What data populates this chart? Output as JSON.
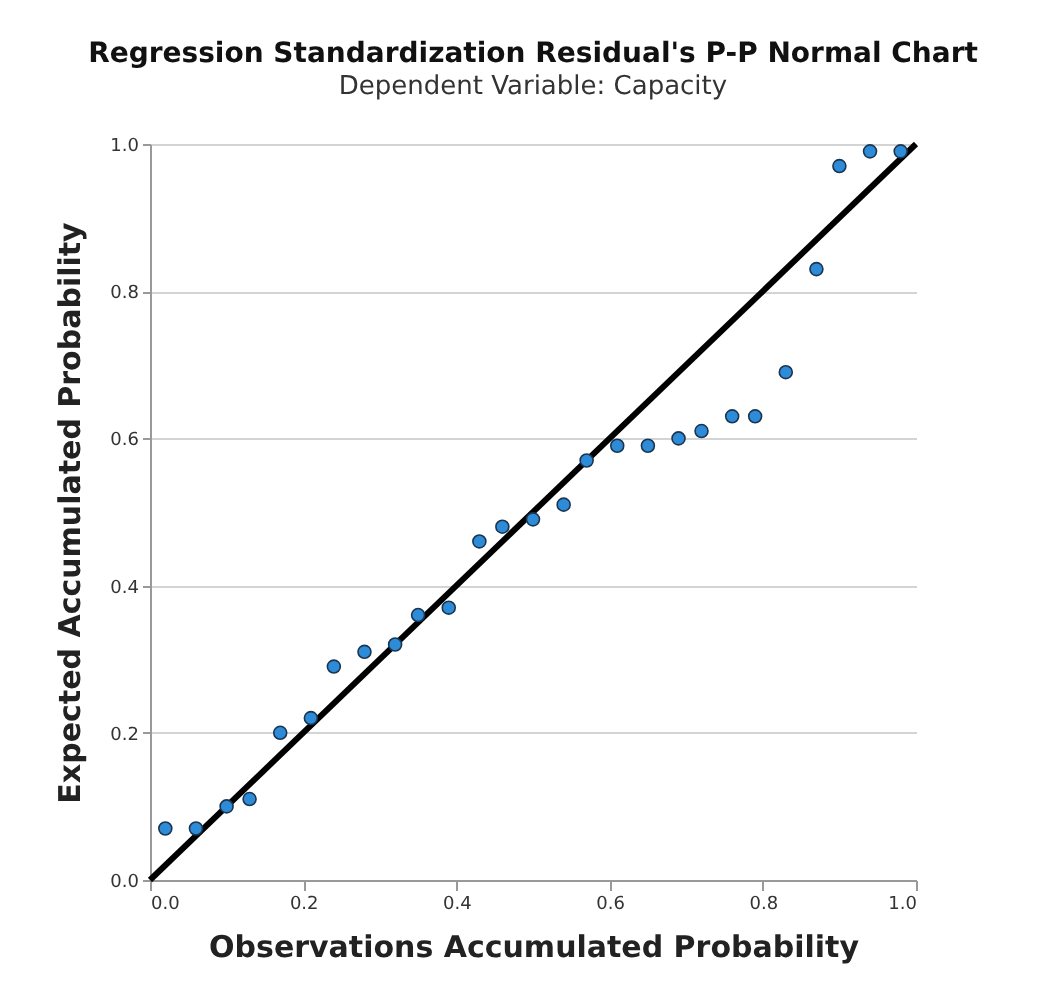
{
  "chart_data": {
    "type": "scatter",
    "title": "Regression Standardization Residual's P-P Normal Chart",
    "subtitle": "Dependent Variable: Capacity",
    "xlabel": "Observations Accumulated Probability",
    "ylabel": "Expected Accumulated Probability",
    "xlim": [
      0,
      1
    ],
    "ylim": [
      0,
      1
    ],
    "xticks": [
      {
        "value": 0,
        "label": "0.0"
      },
      {
        "value": 0.2,
        "label": "0.2"
      },
      {
        "value": 0.4,
        "label": "0.4"
      },
      {
        "value": 0.6,
        "label": "0.6"
      },
      {
        "value": 0.8,
        "label": "0.8"
      },
      {
        "value": 1,
        "label": "1.0"
      }
    ],
    "yticks": [
      {
        "value": 0,
        "label": "0.0"
      },
      {
        "value": 0.2,
        "label": "0.2"
      },
      {
        "value": 0.4,
        "label": "0.4"
      },
      {
        "value": 0.6,
        "label": "0.6"
      },
      {
        "value": 0.8,
        "label": "0.8"
      },
      {
        "value": 1,
        "label": "1.0"
      }
    ],
    "grid": "y",
    "series": [
      {
        "marker": "circle",
        "color": "#2e8bd8",
        "x": [
          0.02,
          0.06,
          0.1,
          0.13,
          0.17,
          0.21,
          0.24,
          0.28,
          0.32,
          0.35,
          0.39,
          0.43,
          0.46,
          0.5,
          0.54,
          0.57,
          0.61,
          0.65,
          0.69,
          0.72,
          0.76,
          0.79,
          0.83,
          0.87,
          0.9,
          0.94,
          0.98
        ],
        "values": [
          0.07,
          0.07,
          0.1,
          0.11,
          0.2,
          0.22,
          0.29,
          0.31,
          0.32,
          0.36,
          0.37,
          0.46,
          0.48,
          0.49,
          0.51,
          0.57,
          0.59,
          0.59,
          0.6,
          0.61,
          0.63,
          0.63,
          0.69,
          0.83,
          0.97,
          0.99,
          0.99
        ]
      },
      {
        "type": "line",
        "color": "#000000",
        "line_style": "solid",
        "x": [
          0,
          1
        ],
        "values": [
          0,
          1
        ]
      }
    ]
  }
}
